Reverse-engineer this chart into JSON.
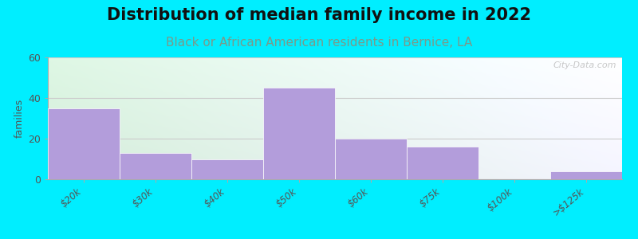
{
  "title": "Distribution of median family income in 2022",
  "subtitle": "Black or African American residents in Bernice, LA",
  "categories": [
    "$20k",
    "$30k",
    "$40k",
    "$50k",
    "$60k",
    "$75k",
    "$100k",
    ">$125k"
  ],
  "values": [
    35,
    13,
    10,
    45,
    20,
    16,
    0,
    4
  ],
  "bar_color": "#b39ddb",
  "ylabel": "families",
  "ylim": [
    0,
    60
  ],
  "yticks": [
    0,
    20,
    40,
    60
  ],
  "background_outer": "#00eeff",
  "background_plot_left": "#d4edda",
  "background_plot_right": "#f0f0ff",
  "title_fontsize": 15,
  "subtitle_fontsize": 11,
  "subtitle_color": "#7a9a8a",
  "watermark": "City-Data.com",
  "grid_color": "#cccccc",
  "bar_width": 1.0
}
